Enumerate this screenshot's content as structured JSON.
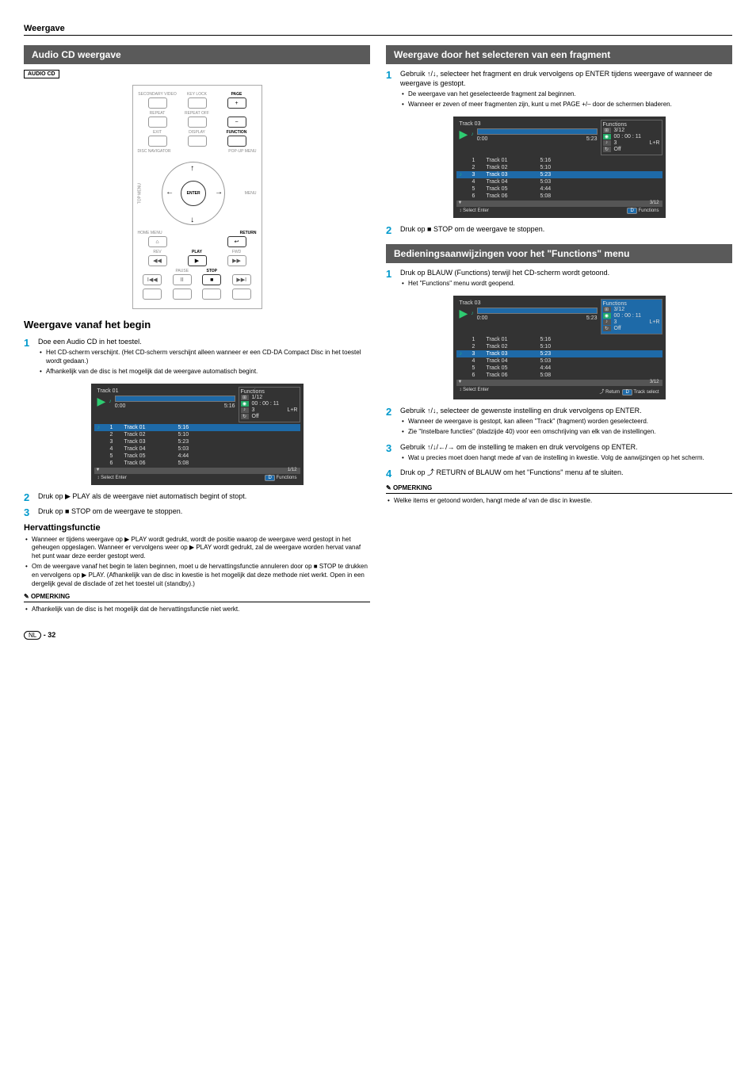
{
  "header": {
    "title": "Weergave"
  },
  "left": {
    "sectionTitle": "Audio CD weergave",
    "badge": "AUDIO CD",
    "remote": {
      "row1": [
        "SECONDARY VIDEO",
        "KEY LOCK",
        "PAGE"
      ],
      "row2": [
        "REPEAT",
        "REPEAT OFF",
        ""
      ],
      "row3": [
        "EXIT",
        "DISPLAY",
        "FUNCTION"
      ],
      "row4": [
        "DISC NAVIGATOR",
        "",
        "POP-UP MENU"
      ],
      "side": [
        "TOP MENU",
        "MENU"
      ],
      "enter": "ENTER",
      "bottomSide": [
        "HOME MENU",
        "RETURN"
      ],
      "row5": [
        "REV",
        "PLAY",
        "FWD"
      ],
      "row6": [
        "",
        "PAUSE",
        "STOP",
        ""
      ]
    },
    "subheading": "Weergave vanaf het begin",
    "step1": {
      "text": "Doe een Audio CD in het toestel.",
      "bullets": [
        "Het CD-scherm verschijnt.\n(Het CD-scherm verschijnt alleen wanneer er een CD-DA Compact Disc in het toestel wordt gedaan.)",
        "Afhankelijk van de disc is het mogelijk dat de weergave automatisch begint."
      ]
    },
    "panelA": {
      "title": "Track 01",
      "time0": "0:00",
      "time1": "5:16",
      "funcTitle": "Functions",
      "f1": "1/12",
      "f2": "00 : 00 : 11",
      "f3_l": "3",
      "f3_r": "L+R",
      "f4": "Off",
      "barFill": "0%",
      "selIndex": 0,
      "tracks": [
        {
          "n": "1",
          "name": "Track 01",
          "t": "5:16"
        },
        {
          "n": "2",
          "name": "Track 02",
          "t": "5:10"
        },
        {
          "n": "3",
          "name": "Track 03",
          "t": "5:23"
        },
        {
          "n": "4",
          "name": "Track 04",
          "t": "5:03"
        },
        {
          "n": "5",
          "name": "Track 05",
          "t": "4:44"
        },
        {
          "n": "6",
          "name": "Track 06",
          "t": "5:08"
        }
      ],
      "scrollPos": "1/12",
      "footL": "Select        Enter",
      "footR": "Functions",
      "footBtn": "D"
    },
    "step2": "Druk op ▶ PLAY als de weergave niet automatisch begint of stopt.",
    "step3": "Druk op ■ STOP om de weergave te stoppen.",
    "resume": {
      "heading": "Hervattingsfunctie",
      "bullets": [
        "Wanneer er tijdens weergave op ▶ PLAY wordt gedrukt, wordt de positie waarop de weergave werd gestopt in het geheugen opgeslagen. Wanneer er vervolgens weer op ▶ PLAY wordt gedrukt, zal de weergave worden hervat vanaf het punt waar deze eerder gestopt werd.",
        "Om de weergave vanaf het begin te laten beginnen, moet u de hervattingsfunctie annuleren door op ■ STOP te drukken en vervolgens op ▶ PLAY. (Afhankelijk van de disc in kwestie is het mogelijk dat deze methode niet werkt. Open in een dergelijk geval de disclade of zet het toestel uit (standby).)"
      ]
    },
    "note": {
      "head": "OPMERKING",
      "bullets": [
        "Afhankelijk van de disc is het mogelijk dat de hervattingsfunctie niet werkt."
      ]
    }
  },
  "right": {
    "secA": {
      "title": "Weergave door het selecteren van een fragment",
      "step1": {
        "text": "Gebruik ↑/↓, selecteer het fragment en druk vervolgens op ENTER tijdens weergave of wanneer de weergave is gestopt.",
        "bullets": [
          "De weergave van het geselecteerde fragment zal beginnen.",
          "Wanneer er zeven of meer fragmenten zijn, kunt u met PAGE +/– door de schermen bladeren."
        ]
      },
      "panel": {
        "title": "Track 03",
        "time0": "0:00",
        "time1": "5:23",
        "funcTitle": "Functions",
        "f1": "3/12",
        "f2": "00 : 00 : 11",
        "f3_l": "3",
        "f3_r": "L+R",
        "f4": "Off",
        "barFill": "0%",
        "selIndex": 2,
        "scrollPos": "3/12",
        "tracks": [
          {
            "n": "1",
            "name": "Track 01",
            "t": "5:16"
          },
          {
            "n": "2",
            "name": "Track 02",
            "t": "5:10"
          },
          {
            "n": "3",
            "name": "Track 03",
            "t": "5:23"
          },
          {
            "n": "4",
            "name": "Track 04",
            "t": "5:03"
          },
          {
            "n": "5",
            "name": "Track 05",
            "t": "4:44"
          },
          {
            "n": "6",
            "name": "Track 06",
            "t": "5:08"
          }
        ],
        "footL": "Select        Enter",
        "footR": "Functions",
        "footBtn": "D"
      },
      "step2": "Druk op ■ STOP om de weergave te stoppen."
    },
    "secB": {
      "title": "Bedieningsaanwijzingen voor het \"Functions\" menu",
      "step1": {
        "text": "Druk op BLAUW (Functions) terwijl het CD-scherm wordt getoond.",
        "bullets": [
          "Het \"Functions\" menu wordt geopend."
        ]
      },
      "panel": {
        "title": "Track 03",
        "time0": "0:00",
        "time1": "5:23",
        "funcTitle": "Functions",
        "f1": "3/12",
        "f2": "00 : 00 : 11",
        "f3_l": "3",
        "f3_r": "L+R",
        "f4": "Off",
        "barFill": "0%",
        "selIndex": 2,
        "scrollPos": "3/12",
        "funcHighlight": true,
        "tracks": [
          {
            "n": "1",
            "name": "Track 01",
            "t": "5:16"
          },
          {
            "n": "2",
            "name": "Track 02",
            "t": "5:10"
          },
          {
            "n": "3",
            "name": "Track 03",
            "t": "5:23"
          },
          {
            "n": "4",
            "name": "Track 04",
            "t": "5:03"
          },
          {
            "n": "5",
            "name": "Track 05",
            "t": "4:44"
          },
          {
            "n": "6",
            "name": "Track 06",
            "t": "5:08"
          }
        ],
        "footL": "Select        Enter",
        "footRet": "Return",
        "footR": "Track select",
        "footBtn": "D"
      },
      "step2": {
        "text": "Gebruik ↑/↓, selecteer de gewenste instelling en druk vervolgens op ENTER.",
        "bullets": [
          "Wanneer de weergave is gestopt, kan alleen \"Track\" (fragment) worden geselecteerd.",
          "Zie \"Instelbare functies\" (bladzijde 40) voor een omschrijving van elk van de instellingen."
        ]
      },
      "step3": {
        "text": "Gebruik ↑/↓/←/→ om de instelling te maken en druk vervolgens op ENTER.",
        "bullets": [
          "Wat u precies moet doen hangt mede af van de instelling in kwestie. Volg de aanwijzingen op het scherm."
        ]
      },
      "step4": "Druk op ⤴ RETURN of BLAUW om het \"Functions\" menu af te sluiten.",
      "note": {
        "head": "OPMERKING",
        "bullets": [
          "Welke items er getoond worden, hangt mede af van de disc in kwestie."
        ]
      }
    }
  },
  "footer": {
    "lang": "NL",
    "page": "32"
  }
}
